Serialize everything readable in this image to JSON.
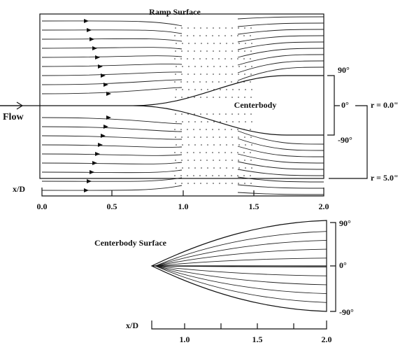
{
  "top": {
    "title": "Ramp Surface",
    "flow_label": "Flow",
    "body_label": "Centerbody",
    "angle_labels": [
      "90°",
      "0°",
      "-90°"
    ],
    "radius_labels": [
      "r = 0.0\"",
      "r = 5.0\""
    ],
    "axis_label": "x/D",
    "ticks": [
      "0.0",
      "0.5",
      "1.0",
      "1.5",
      "2.0"
    ]
  },
  "bottom": {
    "title": "Centerbody Surface",
    "angle_labels": [
      "90°",
      "0°",
      "-90°"
    ],
    "axis_label": "x/D",
    "ticks": [
      "1.0",
      "1.5",
      "2.0"
    ]
  }
}
